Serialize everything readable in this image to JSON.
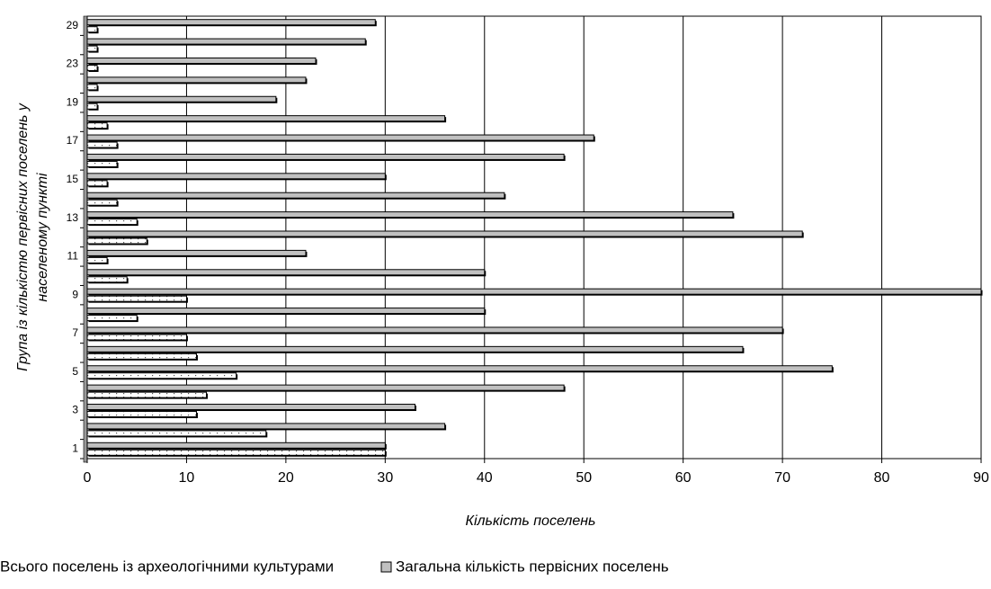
{
  "chart_data": {
    "type": "bar",
    "orientation": "horizontal",
    "x_label": "Кількість поселень",
    "y_label": [
      "Група із кількістю первісних поселень у",
      "населеному пункті"
    ],
    "categories": [
      "1",
      null,
      "3",
      null,
      "5",
      null,
      "7",
      null,
      "9",
      null,
      "11",
      null,
      "13",
      null,
      "15",
      null,
      "17",
      null,
      "19",
      null,
      "23",
      null,
      "29"
    ],
    "series": [
      {
        "name": "Всього поселень із археологічними культурами",
        "color": "#ffffff",
        "values": [
          30,
          18,
          11,
          12,
          15,
          11,
          10,
          5,
          10,
          4,
          2,
          6,
          5,
          3,
          2,
          3,
          3,
          2,
          1,
          1,
          1,
          1,
          1
        ]
      },
      {
        "name": "Загальна кількість первісних поселень",
        "color": "#c0c0c0",
        "values": [
          30,
          36,
          33,
          48,
          75,
          66,
          70,
          40,
          90,
          40,
          22,
          72,
          65,
          42,
          30,
          48,
          51,
          36,
          19,
          22,
          23,
          28,
          29
        ]
      }
    ],
    "xlim": [
      0,
      90
    ],
    "xticks": [
      0,
      10,
      20,
      30,
      40,
      50,
      60,
      70,
      80,
      90
    ],
    "grid": true,
    "legend": "bottom"
  }
}
